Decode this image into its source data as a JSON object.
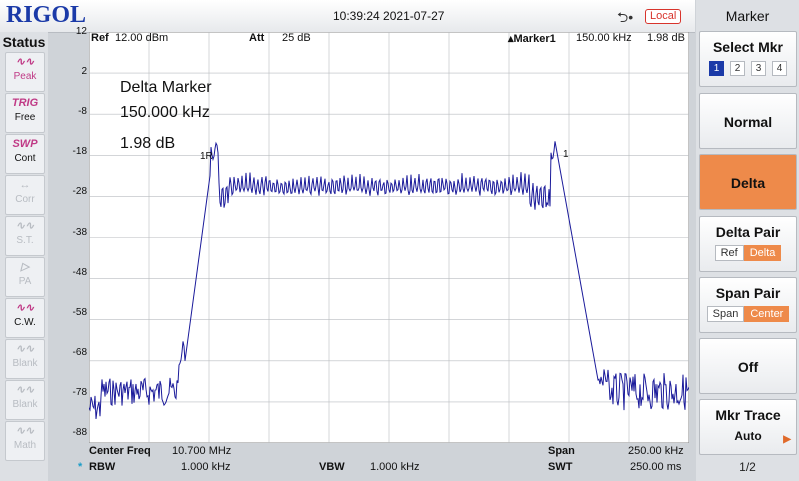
{
  "header": {
    "brand": "RIGOL",
    "datetime": "10:39:24 2021-07-27",
    "usb_icon": "usb-icon",
    "remote": "Local"
  },
  "status": {
    "title": "Status",
    "items": [
      {
        "icon": "peak-icon",
        "glyph": "∿∿",
        "label": "Peak",
        "state": "active"
      },
      {
        "icon": "trig-icon",
        "glyph": "TRIG",
        "label": "Free",
        "state": "act2"
      },
      {
        "icon": "swp-icon",
        "glyph": "SWP",
        "label": "Cont",
        "state": "act2"
      },
      {
        "icon": "corr-icon",
        "glyph": "↔",
        "label": "Corr",
        "state": "dim"
      },
      {
        "icon": "st-icon",
        "glyph": "∿∿",
        "label": "S.T.",
        "state": "dim"
      },
      {
        "icon": "pa-icon",
        "glyph": "▷",
        "label": "PA",
        "state": "dim"
      },
      {
        "icon": "cw-icon",
        "glyph": "∿∿",
        "label": "C.W.",
        "state": "act2"
      },
      {
        "icon": "blank-icon",
        "glyph": "∿∿",
        "label": "Blank",
        "state": "dim"
      },
      {
        "icon": "blank-icon",
        "glyph": "∿∿",
        "label": "Blank",
        "state": "dim"
      },
      {
        "icon": "math-icon",
        "glyph": "∿∿",
        "label": "Math",
        "state": "dim"
      }
    ]
  },
  "display": {
    "ref_label": "Ref",
    "ref_value": "12.00 dBm",
    "att_label": "Att",
    "att_value": "25 dB",
    "marker_label": "▴Marker1",
    "marker_freq": "150.00 kHz",
    "marker_level": "1.98 dB",
    "annotation": [
      "Delta Marker",
      "150.000 kHz",
      "1.98 dB"
    ],
    "marker_tag_1": "1R",
    "marker_tag_2": "1",
    "y_ticks": [
      "12",
      "2",
      "-8",
      "-18",
      "-28",
      "-38",
      "-48",
      "-58",
      "-68",
      "-78",
      "-88"
    ]
  },
  "footer": {
    "center_label": "Center Freq",
    "center_value": "10.700 MHz",
    "span_label": "Span",
    "span_value": "250.00 kHz",
    "rbw_star": "*",
    "rbw_label": "RBW",
    "rbw_value": "1.000 kHz",
    "vbw_label": "VBW",
    "vbw_value": "1.000 kHz",
    "swt_label": "SWT",
    "swt_value": "250.00 ms"
  },
  "menu": {
    "title": "Marker",
    "select_mkr": {
      "label": "Select Mkr",
      "options": [
        "1",
        "2",
        "3",
        "4"
      ],
      "selected": "1"
    },
    "normal": "Normal",
    "delta": "Delta",
    "delta_pair": {
      "label": "Delta Pair",
      "options": [
        "Ref",
        "Delta"
      ],
      "selected": "Delta"
    },
    "span_pair": {
      "label": "Span Pair",
      "options": [
        "Span",
        "Center"
      ],
      "selected": "Center"
    },
    "off": "Off",
    "mkr_trace": {
      "label": "Mkr Trace",
      "value": "Auto"
    },
    "page": "1/2"
  },
  "colors": {
    "trace": "#1a1a9a",
    "accent": "#ee8a4a",
    "grid": "#b9bcc0"
  }
}
